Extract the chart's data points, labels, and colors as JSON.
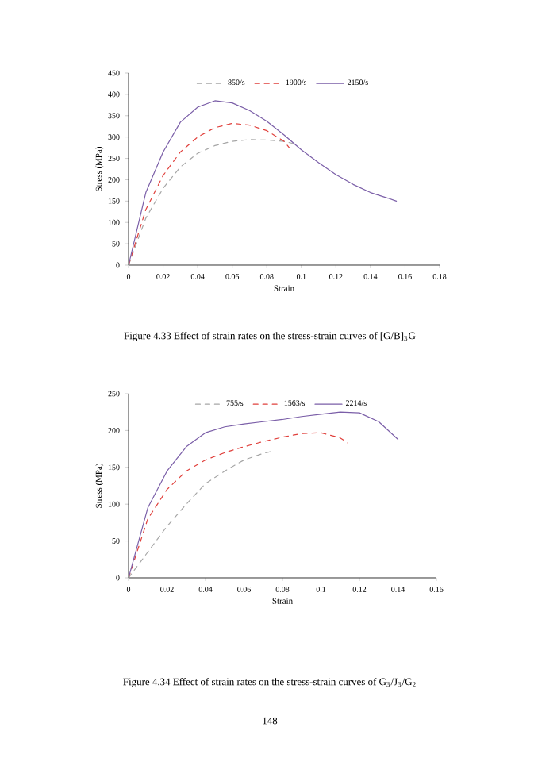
{
  "chart_data": [
    {
      "type": "line",
      "xlabel": "Strain",
      "ylabel": "Stress (MPa)",
      "legend": "top",
      "xlim": [
        0,
        0.18
      ],
      "ylim": [
        0,
        450
      ],
      "xticks": [
        0,
        0.02,
        0.04,
        0.06,
        0.08,
        0.1,
        0.12,
        0.14,
        0.16,
        0.18
      ],
      "yticks": [
        0,
        50,
        100,
        150,
        200,
        250,
        300,
        350,
        400,
        450
      ],
      "series": [
        {
          "name": "850/s",
          "color": "#a6a6a6",
          "line_style": "dashed",
          "x": [
            0,
            0.01,
            0.02,
            0.03,
            0.04,
            0.05,
            0.06,
            0.07,
            0.08,
            0.09,
            0.095
          ],
          "values": [
            0,
            110,
            180,
            230,
            262,
            280,
            290,
            294,
            293,
            290,
            285
          ]
        },
        {
          "name": "1900/s",
          "color": "#e0403c",
          "line_style": "dashed",
          "x": [
            0,
            0.01,
            0.02,
            0.03,
            0.04,
            0.05,
            0.06,
            0.07,
            0.08,
            0.09,
            0.093
          ],
          "values": [
            0,
            130,
            210,
            265,
            300,
            322,
            332,
            328,
            315,
            290,
            275
          ]
        },
        {
          "name": "2150/s",
          "color": "#7b5fa8",
          "line_style": "solid",
          "x": [
            0,
            0.01,
            0.02,
            0.03,
            0.04,
            0.05,
            0.06,
            0.07,
            0.08,
            0.09,
            0.1,
            0.11,
            0.12,
            0.13,
            0.14,
            0.15,
            0.155
          ],
          "values": [
            0,
            170,
            265,
            335,
            370,
            385,
            380,
            362,
            337,
            305,
            270,
            240,
            212,
            189,
            170,
            157,
            150
          ]
        }
      ],
      "annotations": [
        "Figure 4.33    Effect of strain rates on the stress-strain curves of [G/B]$_{3}$G"
      ]
    },
    {
      "type": "line",
      "xlabel": "Strain",
      "ylabel": "Stress (MPa)",
      "legend": "top",
      "xlim": [
        0,
        0.16
      ],
      "ylim": [
        0,
        250
      ],
      "xticks": [
        0,
        0.02,
        0.04,
        0.06,
        0.08,
        0.1,
        0.12,
        0.14,
        0.16
      ],
      "yticks": [
        0,
        50,
        100,
        150,
        200,
        250
      ],
      "series": [
        {
          "name": "755/s",
          "color": "#a6a6a6",
          "line_style": "dashed",
          "x": [
            0,
            0.01,
            0.02,
            0.03,
            0.04,
            0.05,
            0.06,
            0.07,
            0.075
          ],
          "values": [
            0,
            35,
            70,
            100,
            128,
            145,
            160,
            169,
            172
          ]
        },
        {
          "name": "1563/s",
          "color": "#e0403c",
          "line_style": "dashed",
          "x": [
            0,
            0.01,
            0.02,
            0.03,
            0.04,
            0.05,
            0.06,
            0.07,
            0.08,
            0.09,
            0.1,
            0.11,
            0.114
          ],
          "values": [
            0,
            80,
            120,
            145,
            160,
            170,
            178,
            185,
            191,
            196,
            197,
            190,
            183
          ]
        },
        {
          "name": "2214/s",
          "color": "#7b5fa8",
          "line_style": "solid",
          "x": [
            0,
            0.01,
            0.02,
            0.03,
            0.04,
            0.05,
            0.06,
            0.07,
            0.08,
            0.09,
            0.1,
            0.11,
            0.12,
            0.13,
            0.14
          ],
          "values": [
            0,
            95,
            145,
            178,
            197,
            205,
            209,
            212,
            215,
            219,
            222,
            225,
            224,
            212,
            188
          ]
        }
      ],
      "annotations": [
        "Figure 4.34    Effect of strain rates on the stress-strain curves of G$_{3}$/J$_{3}$/G$_{2}$",
        "148"
      ]
    }
  ]
}
